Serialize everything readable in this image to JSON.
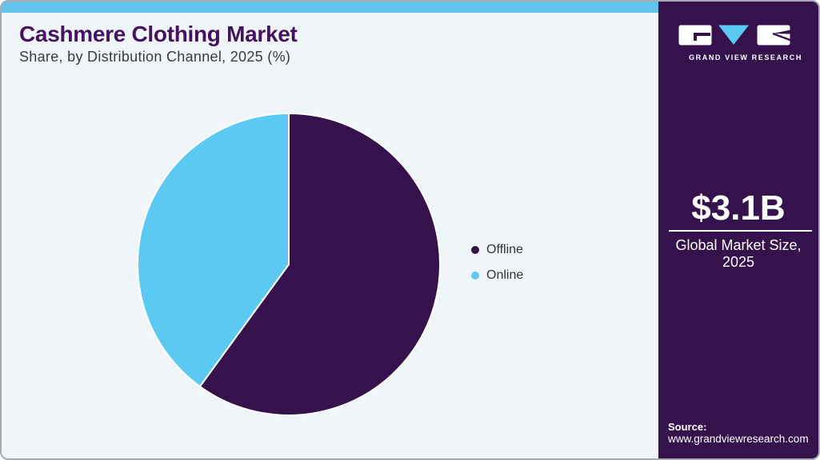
{
  "header": {
    "title": "Cashmere Clothing Market",
    "subtitle": "Share, by Distribution Channel, 2025 (%)"
  },
  "chart_data": {
    "type": "pie",
    "title": "Cashmere Clothing Market Share, by Distribution Channel, 2025 (%)",
    "categories": [
      "Offline",
      "Online"
    ],
    "values": [
      60,
      40
    ],
    "unit": "%",
    "colors": [
      "#36124d",
      "#5bc9f2"
    ],
    "start_angle": "12 o'clock",
    "direction": "clockwise",
    "legend_position": "right",
    "labels_on_slices": false
  },
  "sidebar": {
    "logo_text": "GRAND VIEW RESEARCH",
    "market_size_value": "$3.1B",
    "market_size_label": "Global Market Size, 2025",
    "source_label": "Source:",
    "source_url": "www.grandviewresearch.com"
  },
  "colors": {
    "brand_purple": "#36124d",
    "brand_blue": "#5bc9f2",
    "topbar_blue": "#63c3ec",
    "title_purple": "#45125f",
    "background": "#f0f5fa",
    "slice_gap": "#ffffff"
  }
}
